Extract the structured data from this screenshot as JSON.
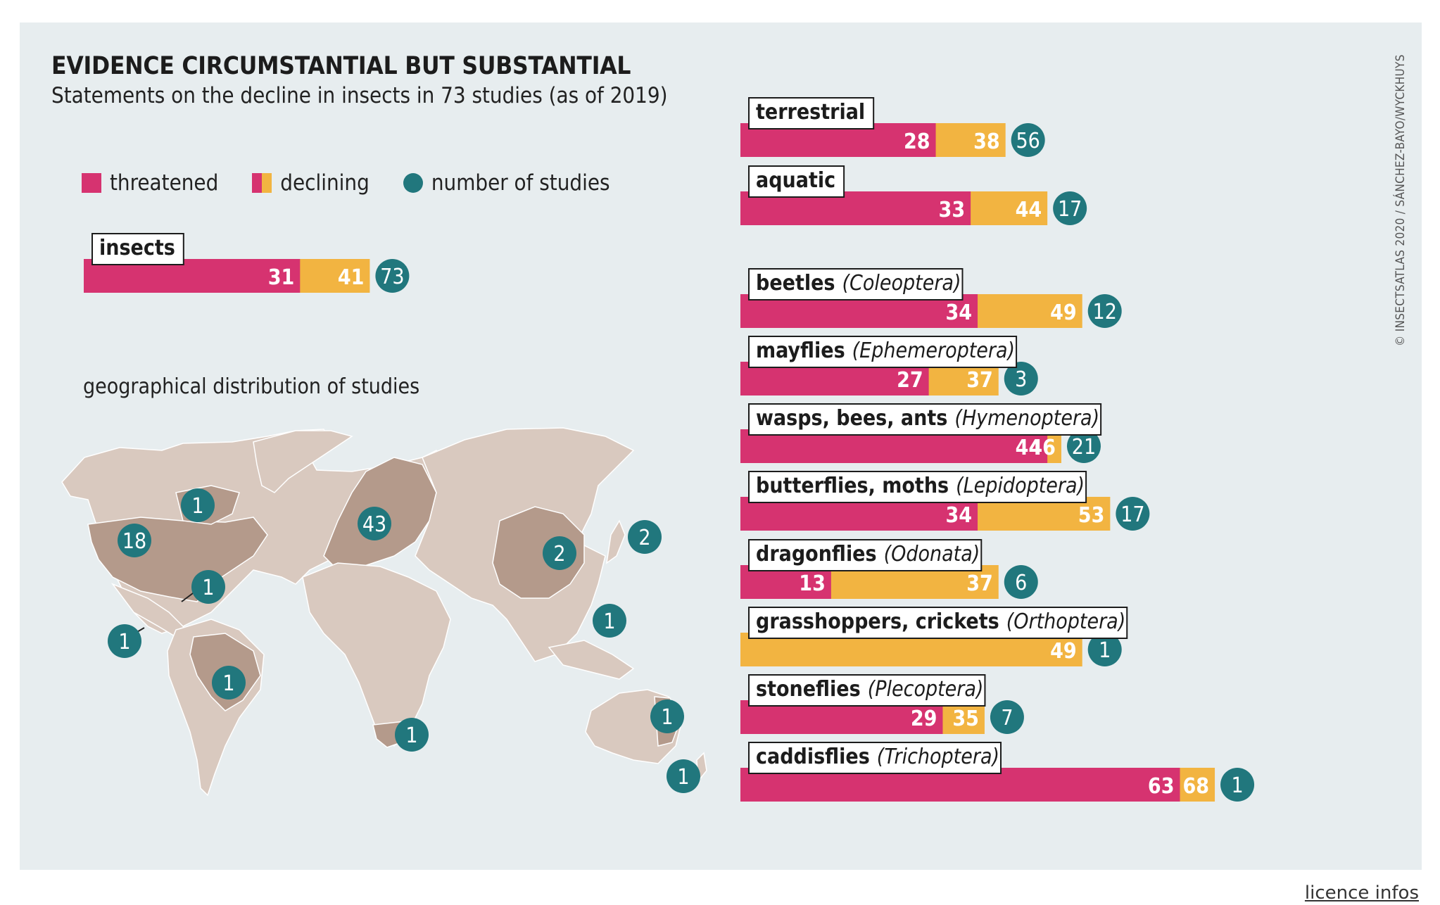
{
  "title": "EVIDENCE CIRCUMSTANTIAL BUT SUBSTANTIAL",
  "subtitle": "Statements on the decline in insects in 73 studies (as of 2019)",
  "legend": {
    "threatened": "threatened",
    "declining": "declining",
    "studies": "number of studies"
  },
  "geo_label": "geographical distribution of studies",
  "credit": "© INSECTSATLAS 2020 / SÁNCHEZ-BAYO/WYCKHUYS",
  "licence": "licence infos",
  "colors": {
    "threatened": "#d63370",
    "declining": "#f2b441",
    "studies": "#21777d",
    "land": "#d9c9bf",
    "land_study": "#b49a8b"
  },
  "chart_data": {
    "type": "bar",
    "orientation": "horizontal",
    "stacked_cumulative": true,
    "unit": "percent",
    "series": [
      {
        "name": "threatened",
        "values": [
          31,
          28,
          33,
          34,
          27,
          44,
          34,
          13,
          0,
          29,
          63
        ]
      },
      {
        "name": "declining",
        "values": [
          41,
          38,
          44,
          49,
          37,
          46,
          53,
          37,
          49,
          35,
          68
        ]
      },
      {
        "name": "number of studies",
        "values": [
          73,
          56,
          17,
          12,
          3,
          21,
          17,
          6,
          1,
          7,
          1
        ]
      }
    ],
    "categories": [
      {
        "name": "insects",
        "latin": ""
      },
      {
        "name": "terrestrial",
        "latin": ""
      },
      {
        "name": "aquatic",
        "latin": ""
      },
      {
        "name": "beetles",
        "latin": "(Coleoptera)"
      },
      {
        "name": "mayflies",
        "latin": "(Ephemeroptera)"
      },
      {
        "name": "wasps, bees, ants",
        "latin": "(Hymenoptera)"
      },
      {
        "name": "butterflies, moths",
        "latin": "(Lepidoptera)"
      },
      {
        "name": "dragonflies",
        "latin": "(Odonata)"
      },
      {
        "name": "grasshoppers, crickets",
        "latin": "(Orthoptera)"
      },
      {
        "name": "stoneflies",
        "latin": "(Plecoptera)"
      },
      {
        "name": "caddisflies",
        "latin": "(Trichoptera)"
      }
    ],
    "map_studies": [
      {
        "region": "Canada",
        "count": "1"
      },
      {
        "region": "USA",
        "count": "18"
      },
      {
        "region": "Caribbean",
        "count": "1"
      },
      {
        "region": "Central America",
        "count": "1"
      },
      {
        "region": "Brazil",
        "count": "1"
      },
      {
        "region": "Europe",
        "count": "43"
      },
      {
        "region": "China",
        "count": "2"
      },
      {
        "region": "Japan",
        "count": "2"
      },
      {
        "region": "Southeast Asia",
        "count": "1"
      },
      {
        "region": "South Africa",
        "count": "1"
      },
      {
        "region": "Australia",
        "count": "1"
      },
      {
        "region": "New Zealand",
        "count": "1"
      }
    ]
  }
}
